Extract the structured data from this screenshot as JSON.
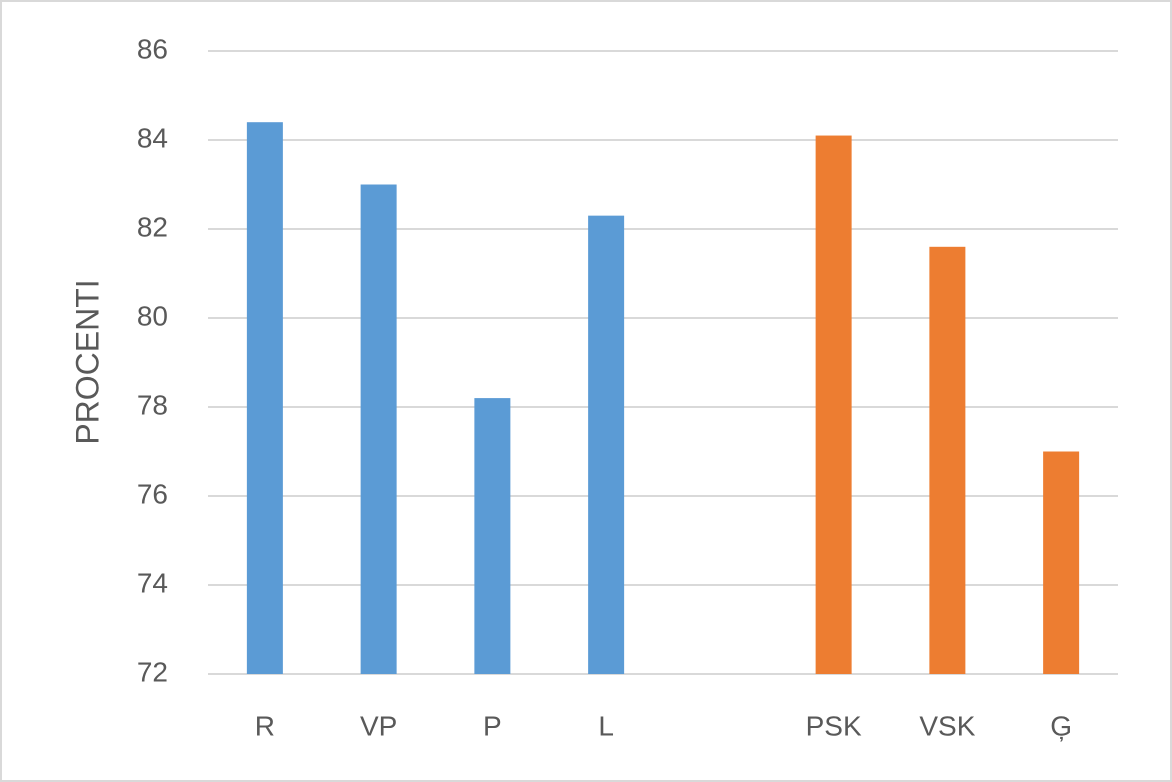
{
  "chart_data": {
    "type": "bar",
    "y_label": "PROCENTI",
    "categories": [
      "R",
      "VP",
      "P",
      "L",
      null,
      "PSK",
      "VSK",
      "Ģ"
    ],
    "values": [
      84.4,
      83.0,
      78.2,
      82.3,
      null,
      84.1,
      81.6,
      77.0
    ],
    "colors": [
      "#5b9bd5",
      "#5b9bd5",
      "#5b9bd5",
      "#5b9bd5",
      null,
      "#ed7d31",
      "#ed7d31",
      "#ed7d31"
    ],
    "ylim": [
      72,
      86
    ],
    "yticks": [
      72,
      74,
      76,
      78,
      80,
      82,
      84,
      86
    ],
    "grid": true
  }
}
